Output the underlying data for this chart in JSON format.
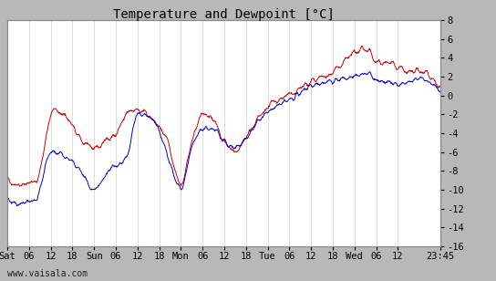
{
  "title": "Temperature and Dewpoint [°C]",
  "ylim": [
    -16,
    8
  ],
  "yticks": [
    -16,
    -14,
    -12,
    -10,
    -8,
    -6,
    -4,
    -2,
    0,
    2,
    4,
    6,
    8
  ],
  "xtick_labels": [
    "Sat",
    "06",
    "12",
    "18",
    "Sun",
    "06",
    "12",
    "18",
    "Mon",
    "06",
    "12",
    "18",
    "Tue",
    "06",
    "12",
    "18",
    "Wed",
    "06",
    "12",
    "23:45"
  ],
  "xtick_hours": [
    0,
    6,
    12,
    18,
    24,
    30,
    36,
    42,
    48,
    54,
    60,
    66,
    72,
    78,
    84,
    90,
    96,
    102,
    108,
    119.75
  ],
  "watermark": "www.vaisala.com",
  "temp_color": "#cc0000",
  "dewpoint_color": "#0000cc",
  "bg_color": "#ffffff",
  "outer_bg": "#b8b8b8",
  "grid_color": "#cccccc",
  "title_fontsize": 10,
  "tick_fontsize": 7.5,
  "watermark_fontsize": 7,
  "temp_knots_t": [
    0,
    3,
    8,
    13,
    18,
    21,
    24,
    30,
    33,
    36,
    40,
    44,
    48,
    51,
    54,
    57,
    60,
    63,
    66,
    70,
    75,
    78,
    84,
    90,
    96,
    100,
    102,
    106,
    108,
    112,
    114,
    119.75
  ],
  "temp_knots_v": [
    -9,
    -9.5,
    -9,
    -1.5,
    -3,
    -5,
    -5.5,
    -4,
    -2,
    -1.5,
    -2.5,
    -4.5,
    -9.5,
    -5,
    -2,
    -2.5,
    -5,
    -6,
    -4.5,
    -2,
    -0.5,
    0,
    1.5,
    2.5,
    4.5,
    4.8,
    3.5,
    3.5,
    3,
    2.5,
    2.5,
    0.8
  ],
  "dew_knots_t": [
    0,
    3,
    8,
    12,
    18,
    21,
    24,
    28,
    33,
    36,
    40,
    44,
    48,
    51,
    54,
    57,
    60,
    63,
    66,
    70,
    75,
    78,
    84,
    90,
    96,
    100,
    102,
    106,
    108,
    112,
    114,
    119.75
  ],
  "dew_knots_v": [
    -11,
    -11.5,
    -11,
    -6,
    -7,
    -8.5,
    -10,
    -8,
    -6.5,
    -2,
    -2.5,
    -6,
    -9.8,
    -5.5,
    -3.5,
    -3.5,
    -4.8,
    -5.5,
    -4.5,
    -2.5,
    -1,
    -0.5,
    1,
    1.5,
    2,
    2.5,
    1.5,
    1.5,
    1.2,
    1.5,
    1.8,
    0.3
  ]
}
